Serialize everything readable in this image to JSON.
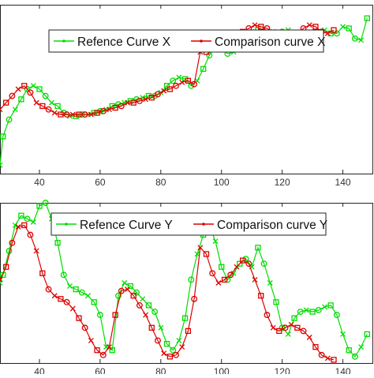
{
  "chart_data": [
    {
      "type": "line",
      "title": "",
      "xlabel": "",
      "ylabel": "",
      "xlim": [
        27,
        150
      ],
      "ylim": [
        0,
        1
      ],
      "xticks": [
        40,
        60,
        80,
        100,
        120,
        140
      ],
      "grid": false,
      "legend": "top-center",
      "series": [
        {
          "name": "Refence Curve X",
          "color": "#00dd00",
          "markers": [
            "x",
            "square",
            "circle"
          ],
          "x": [
            27,
            28,
            30,
            32,
            34,
            36,
            38,
            40,
            42,
            44,
            46,
            48,
            50,
            52,
            54,
            56,
            58,
            60,
            62,
            64,
            66,
            68,
            70,
            72,
            74,
            76,
            78,
            80,
            82,
            84,
            86,
            88,
            90,
            92,
            94,
            96,
            98,
            100,
            102,
            104,
            106,
            108,
            110,
            112,
            114,
            116,
            118,
            120,
            122,
            124,
            126,
            128,
            130,
            132,
            134,
            136,
            138,
            140,
            142,
            144,
            146,
            148
          ],
          "y": [
            0.05,
            0.22,
            0.32,
            0.38,
            0.44,
            0.5,
            0.52,
            0.5,
            0.46,
            0.42,
            0.4,
            0.36,
            0.34,
            0.34,
            0.35,
            0.35,
            0.36,
            0.37,
            0.38,
            0.4,
            0.41,
            0.42,
            0.43,
            0.44,
            0.45,
            0.46,
            0.46,
            0.48,
            0.52,
            0.55,
            0.57,
            0.56,
            0.52,
            0.55,
            0.62,
            0.7,
            0.76,
            0.74,
            0.71,
            0.72,
            0.76,
            0.8,
            0.84,
            0.85,
            0.84,
            0.83,
            0.83,
            0.84,
            0.85,
            0.82,
            0.79,
            0.78,
            0.8,
            0.83,
            0.85,
            0.83,
            0.83,
            0.87,
            0.86,
            0.8,
            0.79,
            0.92
          ]
        },
        {
          "name": "Comparison curve X",
          "color": "#dd0000",
          "markers": [
            "x",
            "square",
            "circle"
          ],
          "x": [
            27,
            29,
            31,
            33,
            35,
            37,
            39,
            41,
            43,
            45,
            47,
            49,
            51,
            53,
            55,
            57,
            59,
            61,
            63,
            65,
            67,
            69,
            71,
            73,
            75,
            77,
            79,
            81,
            83,
            85,
            87,
            89,
            91,
            93,
            95,
            97,
            99,
            101,
            103,
            105,
            107,
            109,
            111,
            113,
            115,
            117,
            119,
            121,
            123,
            125,
            127,
            129,
            131,
            133,
            135,
            137
          ],
          "y": [
            0.38,
            0.42,
            0.46,
            0.5,
            0.52,
            0.48,
            0.42,
            0.4,
            0.38,
            0.36,
            0.35,
            0.35,
            0.35,
            0.35,
            0.35,
            0.35,
            0.36,
            0.37,
            0.38,
            0.39,
            0.4,
            0.42,
            0.42,
            0.43,
            0.44,
            0.45,
            0.47,
            0.49,
            0.5,
            0.52,
            0.54,
            0.55,
            0.53,
            0.72,
            0.72,
            0.76,
            0.78,
            0.8,
            0.8,
            0.79,
            0.84,
            0.86,
            0.88,
            0.87,
            0.86,
            0.84,
            0.82,
            0.8,
            0.8,
            0.83,
            0.86,
            0.88,
            0.87,
            0.84,
            0.83,
            0.85
          ]
        }
      ]
    },
    {
      "type": "line",
      "title": "",
      "xlabel": "",
      "ylabel": "",
      "xlim": [
        27,
        150
      ],
      "ylim": [
        0,
        1
      ],
      "xticks": [
        40,
        60,
        80,
        100,
        120,
        140
      ],
      "grid": false,
      "legend": "top-center",
      "series": [
        {
          "name": "Refence Curve Y",
          "color": "#00dd00",
          "markers": [
            "x",
            "square",
            "circle"
          ],
          "x": [
            27,
            28,
            30,
            32,
            34,
            36,
            38,
            40,
            42,
            44,
            46,
            48,
            50,
            52,
            54,
            56,
            58,
            60,
            62,
            64,
            66,
            68,
            70,
            72,
            74,
            76,
            78,
            80,
            82,
            84,
            86,
            88,
            90,
            92,
            94,
            96,
            98,
            100,
            102,
            104,
            106,
            108,
            110,
            112,
            114,
            116,
            118,
            120,
            122,
            124,
            126,
            128,
            130,
            132,
            134,
            136,
            138,
            140,
            142,
            144,
            146,
            148
          ],
          "y": [
            0.5,
            0.55,
            0.7,
            0.86,
            0.92,
            0.9,
            0.88,
            0.98,
            1.0,
            0.9,
            0.75,
            0.55,
            0.48,
            0.46,
            0.44,
            0.42,
            0.38,
            0.3,
            0.1,
            0.08,
            0.42,
            0.5,
            0.48,
            0.44,
            0.4,
            0.36,
            0.32,
            0.22,
            0.12,
            0.08,
            0.14,
            0.28,
            0.52,
            0.68,
            0.8,
            0.86,
            0.76,
            0.6,
            0.52,
            0.56,
            0.62,
            0.65,
            0.6,
            0.72,
            0.62,
            0.5,
            0.38,
            0.22,
            0.18,
            0.28,
            0.32,
            0.33,
            0.32,
            0.33,
            0.35,
            0.36,
            0.3,
            0.18,
            0.08,
            0.04,
            0.1,
            0.18
          ]
        },
        {
          "name": "Comparison curve Y",
          "color": "#dd0000",
          "markers": [
            "x",
            "square",
            "circle"
          ],
          "x": [
            27,
            29,
            31,
            33,
            35,
            37,
            39,
            41,
            43,
            45,
            47,
            49,
            51,
            53,
            55,
            57,
            59,
            61,
            63,
            65,
            67,
            69,
            71,
            73,
            75,
            77,
            79,
            81,
            83,
            85,
            87,
            89,
            91,
            93,
            95,
            97,
            99,
            101,
            103,
            105,
            107,
            109,
            111,
            113,
            115,
            117,
            119,
            121,
            123,
            125,
            127,
            129,
            131,
            133,
            135,
            137
          ],
          "y": [
            0.52,
            0.6,
            0.75,
            0.85,
            0.86,
            0.8,
            0.7,
            0.56,
            0.46,
            0.42,
            0.4,
            0.38,
            0.34,
            0.28,
            0.22,
            0.14,
            0.08,
            0.05,
            0.1,
            0.3,
            0.45,
            0.46,
            0.42,
            0.36,
            0.3,
            0.22,
            0.14,
            0.06,
            0.04,
            0.05,
            0.1,
            0.2,
            0.4,
            0.72,
            0.68,
            0.56,
            0.5,
            0.52,
            0.55,
            0.6,
            0.64,
            0.62,
            0.52,
            0.42,
            0.3,
            0.22,
            0.2,
            0.22,
            0.24,
            0.22,
            0.2,
            0.16,
            0.1,
            0.05,
            0.03,
            0.02
          ]
        }
      ]
    }
  ]
}
